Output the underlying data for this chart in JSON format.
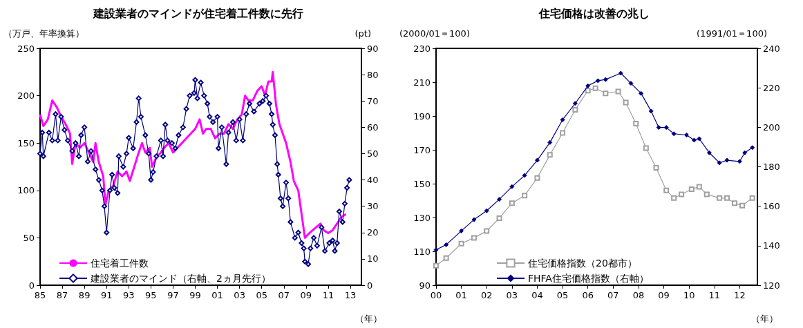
{
  "chart_data": [
    {
      "type": "line",
      "title": "建設業者のマインドが住宅着工件数に先行",
      "ylabel": "（万戸、年率換算）",
      "y2label": "(pt)",
      "xlabel": "（年）",
      "xlim": [
        1985,
        2014
      ],
      "xticks": [
        {
          "value": 1985,
          "label": "85"
        },
        {
          "value": 1987,
          "label": "87"
        },
        {
          "value": 1989,
          "label": "89"
        },
        {
          "value": 1991,
          "label": "91"
        },
        {
          "value": 1993,
          "label": "93"
        },
        {
          "value": 1995,
          "label": "95"
        },
        {
          "value": 1997,
          "label": "97"
        },
        {
          "value": 1999,
          "label": "99"
        },
        {
          "value": 2001,
          "label": "01"
        },
        {
          "value": 2003,
          "label": "03"
        },
        {
          "value": 2005,
          "label": "05"
        },
        {
          "value": 2007,
          "label": "07"
        },
        {
          "value": 2009,
          "label": "09"
        },
        {
          "value": 2011,
          "label": "11"
        },
        {
          "value": 2013,
          "label": "13"
        }
      ],
      "ylim": [
        0,
        250
      ],
      "yticks": [
        0,
        50,
        100,
        150,
        200,
        250
      ],
      "y2lim": [
        0,
        90
      ],
      "y2ticks": [
        0,
        10,
        20,
        30,
        40,
        50,
        60,
        70,
        80,
        90
      ],
      "legend": "bottom left",
      "grid": false,
      "series": [
        {
          "name": "住宅着工件数",
          "color": "#ff00ff",
          "marker": "none",
          "x": [
            1985.0,
            1985.3,
            1985.7,
            1986.1,
            1986.5,
            1986.9,
            1987.3,
            1987.7,
            1987.9,
            1988.2,
            1988.6,
            1989.0,
            1989.4,
            1989.8,
            1990.0,
            1990.3,
            1990.7,
            1990.9,
            1991.2,
            1991.6,
            1992.0,
            1992.4,
            1992.8,
            1993.1,
            1993.5,
            1993.9,
            1994.2,
            1994.5,
            1994.9,
            1995.1,
            1995.5,
            1995.9,
            1996.2,
            1996.6,
            1997.0,
            1997.4,
            1997.8,
            1998.2,
            1998.6,
            1999.0,
            1999.4,
            1999.7,
            2000.0,
            2000.4,
            2000.8,
            2001.2,
            2001.6,
            2002.0,
            2002.4,
            2002.8,
            2003.2,
            2003.5,
            2003.8,
            2004.2,
            2004.6,
            2005.0,
            2005.3,
            2005.6,
            2005.9,
            2006.0,
            2006.3,
            2006.6,
            2006.9,
            2007.2,
            2007.6,
            2007.9,
            2008.3,
            2008.6,
            2008.9,
            2009.3,
            2009.8,
            2010.3,
            2010.6,
            2011.0,
            2011.4,
            2011.8,
            2012.2,
            2012.6
          ],
          "values": [
            180,
            168,
            175,
            195,
            188,
            178,
            170,
            160,
            128,
            150,
            145,
            150,
            140,
            130,
            150,
            130,
            115,
            85,
            100,
            105,
            120,
            115,
            120,
            110,
            125,
            140,
            150,
            140,
            145,
            125,
            135,
            140,
            145,
            150,
            140,
            145,
            150,
            155,
            160,
            165,
            175,
            160,
            165,
            165,
            155,
            160,
            160,
            170,
            165,
            175,
            180,
            200,
            195,
            195,
            205,
            210,
            200,
            215,
            215,
            225,
            190,
            170,
            160,
            150,
            130,
            110,
            100,
            75,
            50,
            55,
            60,
            65,
            58,
            55,
            58,
            65,
            72,
            75
          ]
        },
        {
          "name": "建設業者のマインド（右軸、2ヵ月先行）",
          "color": "#000080",
          "marker": "diamond",
          "axis": "y2",
          "x": [
            1985.0,
            1985.2,
            1985.3,
            1985.8,
            1986.1,
            1986.4,
            1986.6,
            1986.9,
            1987.2,
            1987.5,
            1987.9,
            1988.2,
            1988.5,
            1988.7,
            1989.0,
            1989.3,
            1989.6,
            1990.0,
            1990.3,
            1990.6,
            1990.8,
            1991.0,
            1991.3,
            1991.5,
            1991.7,
            1992.0,
            1992.1,
            1992.5,
            1992.8,
            1993.0,
            1993.4,
            1993.7,
            1993.9,
            1994.1,
            1994.5,
            1994.8,
            1995.0,
            1995.2,
            1995.5,
            1995.9,
            1996.1,
            1996.3,
            1996.5,
            1996.9,
            1997.2,
            1997.5,
            1997.9,
            1998.2,
            1998.5,
            1998.9,
            1999.0,
            1999.2,
            1999.5,
            1999.8,
            2000.1,
            2000.3,
            2000.6,
            2001.0,
            2001.1,
            2001.4,
            2001.8,
            2002.0,
            2002.4,
            2002.7,
            2003.0,
            2003.3,
            2003.6,
            2003.9,
            2004.3,
            2004.8,
            2005.1,
            2005.4,
            2005.7,
            2005.9,
            2006.0,
            2006.2,
            2006.4,
            2006.5,
            2006.7,
            2006.9,
            2007.2,
            2007.4,
            2007.6,
            2008.0,
            2008.3,
            2008.6,
            2008.8,
            2008.9,
            2009.2,
            2009.4,
            2009.7,
            2010.0,
            2010.4,
            2010.7,
            2011.1,
            2011.4,
            2011.6,
            2011.8,
            2012.0,
            2012.3,
            2012.5,
            2012.7,
            2012.9
          ],
          "values": [
            50,
            58,
            49,
            58,
            55,
            65,
            55,
            64,
            59,
            55,
            51,
            54,
            49,
            57,
            60,
            47,
            51,
            44,
            40,
            36,
            30,
            20,
            36,
            42,
            37,
            35,
            49,
            45,
            50,
            56,
            52,
            62,
            71,
            64,
            57,
            50,
            40,
            43,
            49,
            55,
            49,
            61,
            55,
            54,
            52,
            57,
            60,
            67,
            72,
            73,
            78,
            71,
            77,
            72,
            69,
            64,
            62,
            64,
            52,
            60,
            46,
            58,
            62,
            55,
            63,
            55,
            65,
            69,
            66,
            69,
            70,
            72,
            69,
            65,
            61,
            57,
            46,
            42,
            33,
            30,
            39,
            33,
            24,
            18,
            20,
            16,
            14,
            9,
            8,
            14,
            18,
            15,
            22,
            13,
            16,
            17,
            13,
            16,
            28,
            24,
            31,
            37,
            40
          ]
        }
      ]
    },
    {
      "type": "line",
      "title": "住宅価格は改善の兆し",
      "ylabel": "(2000/01＝100)",
      "y2label": "(1991/01＝100)",
      "xlabel": "（年）",
      "xlim": [
        2000,
        2012.7
      ],
      "xticks": [
        {
          "value": 2000,
          "label": "00"
        },
        {
          "value": 2001,
          "label": "01"
        },
        {
          "value": 2002,
          "label": "02"
        },
        {
          "value": 2003,
          "label": "03"
        },
        {
          "value": 2004,
          "label": "04"
        },
        {
          "value": 2005,
          "label": "05"
        },
        {
          "value": 2006,
          "label": "06"
        },
        {
          "value": 2007,
          "label": "07"
        },
        {
          "value": 2008,
          "label": "08"
        },
        {
          "value": 2009,
          "label": "09"
        },
        {
          "value": 2010,
          "label": "10"
        },
        {
          "value": 2011,
          "label": "11"
        },
        {
          "value": 2012,
          "label": "12"
        }
      ],
      "ylim": [
        90,
        230
      ],
      "yticks": [
        90,
        110,
        130,
        150,
        170,
        190,
        210,
        230
      ],
      "y2lim": [
        120,
        240
      ],
      "y2ticks": [
        120,
        140,
        160,
        180,
        200,
        220,
        240
      ],
      "legend": "bottom",
      "grid": false,
      "series": [
        {
          "name": "住宅価格指数（20都市）",
          "color": "#a0a0a0",
          "marker": "square",
          "x": [
            2000.0,
            2000.4,
            2001.0,
            2001.5,
            2002.0,
            2002.5,
            2003.0,
            2003.5,
            2004.0,
            2004.5,
            2005.0,
            2005.5,
            2006.0,
            2006.3,
            2006.7,
            2007.2,
            2007.5,
            2007.9,
            2008.3,
            2008.7,
            2009.1,
            2009.4,
            2009.7,
            2010.1,
            2010.4,
            2010.7,
            2011.2,
            2011.5,
            2011.8,
            2012.1,
            2012.5
          ],
          "values": [
            101.5,
            106,
            114.6,
            118,
            122,
            129.6,
            138.5,
            143,
            153.4,
            167,
            180,
            193.7,
            205,
            206.4,
            203.4,
            204.5,
            198,
            185.5,
            171,
            159.4,
            146,
            141.5,
            143.7,
            146.7,
            148.2,
            143.7,
            141.5,
            141.5,
            138.5,
            137,
            141.5
          ]
        },
        {
          "name": "FHFA住宅価格指数（右軸）",
          "color": "#000080",
          "marker": "diamond",
          "axis": "y2",
          "x": [
            2000.0,
            2000.4,
            2001.0,
            2001.5,
            2002.0,
            2002.5,
            2003.0,
            2003.5,
            2004.0,
            2004.5,
            2005.0,
            2005.5,
            2006.0,
            2006.4,
            2006.7,
            2007.3,
            2007.7,
            2008.1,
            2008.5,
            2008.8,
            2009.1,
            2009.4,
            2009.9,
            2010.2,
            2010.4,
            2010.8,
            2011.2,
            2011.5,
            2012.0,
            2012.2,
            2012.5
          ],
          "values": [
            137.9,
            140.5,
            147.5,
            153.2,
            157.7,
            163.5,
            169.9,
            175.6,
            183.3,
            192.3,
            203.8,
            212.1,
            221,
            223.6,
            224.2,
            227.4,
            222.3,
            217.2,
            208.2,
            199.9,
            199.9,
            196.7,
            196.1,
            193.5,
            194.2,
            187.1,
            182,
            183.3,
            182.7,
            187.1,
            189.7
          ]
        }
      ]
    }
  ]
}
